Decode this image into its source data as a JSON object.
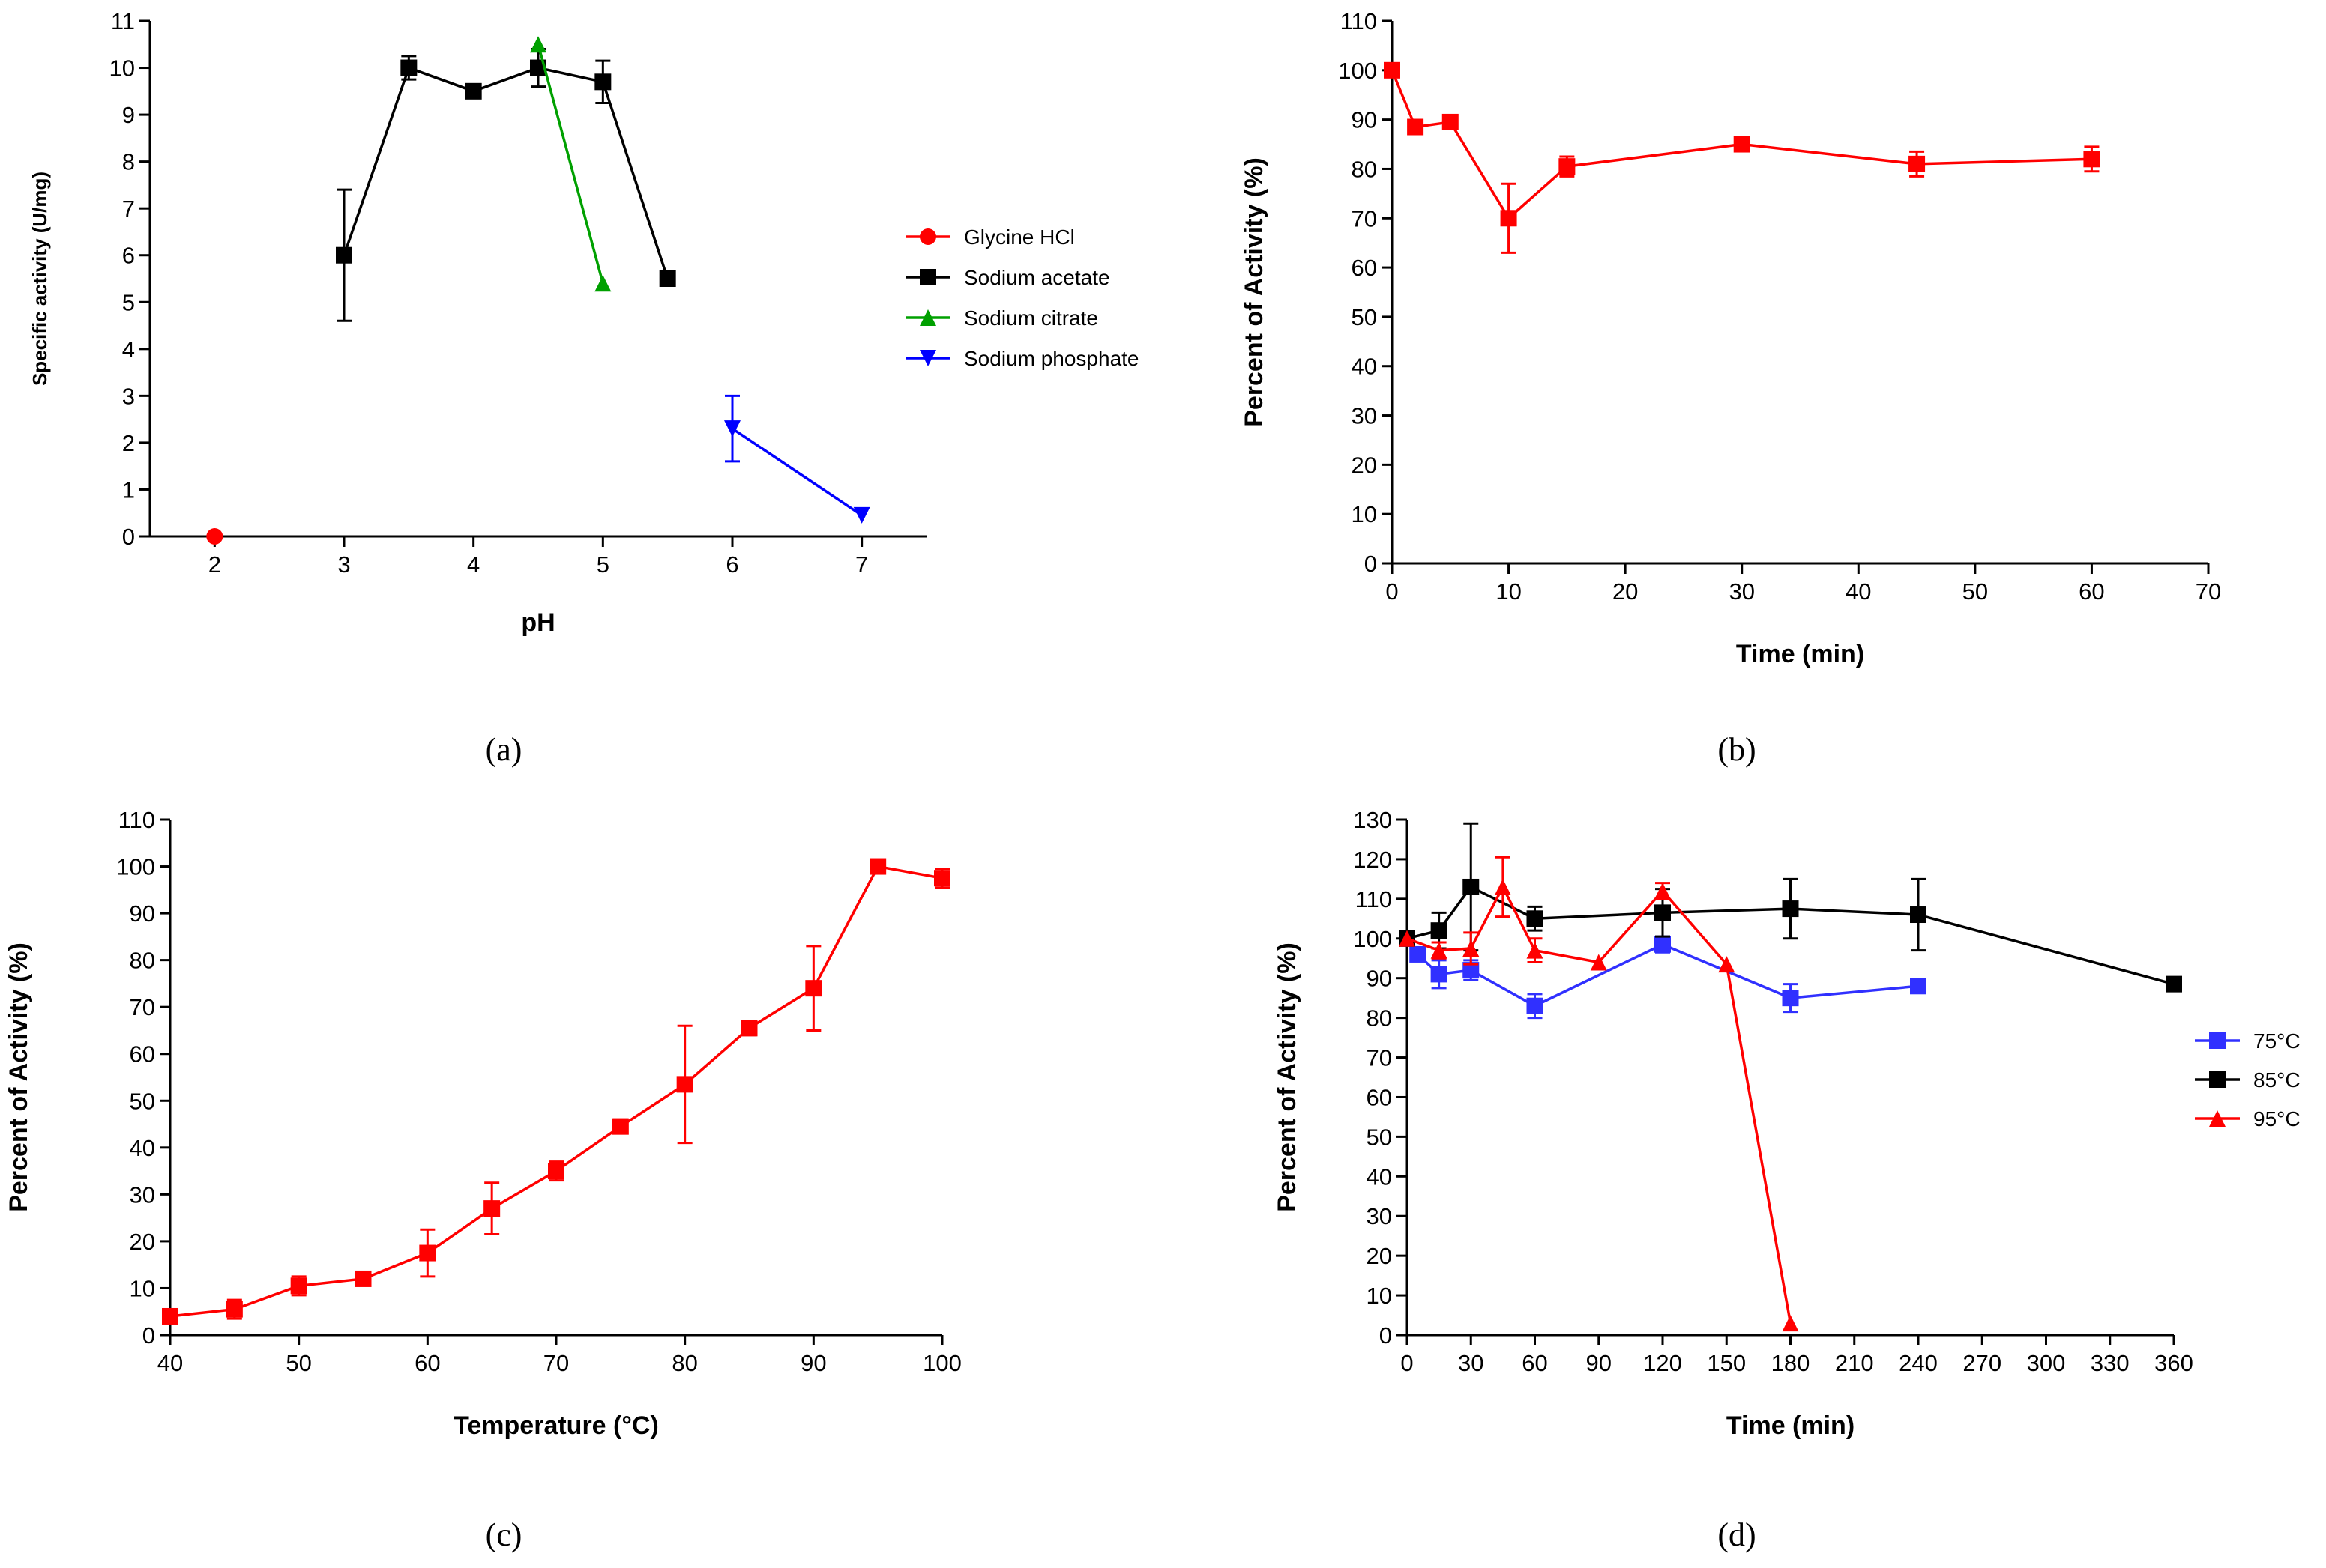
{
  "figure": {
    "panel_labels": [
      "(a)",
      "(b)",
      "(c)",
      "(d)"
    ]
  },
  "chart_data": [
    {
      "id": "a",
      "type": "line",
      "xlabel": "pH",
      "ylabel": "Specific activity (U/mg)",
      "xlim": [
        1.5,
        7.5
      ],
      "ylim": [
        0,
        11
      ],
      "xticks": [
        2,
        3,
        4,
        5,
        6,
        7
      ],
      "yticks": [
        0,
        1,
        2,
        3,
        4,
        5,
        6,
        7,
        8,
        9,
        10,
        11
      ],
      "legend_position": "right",
      "series": [
        {
          "name": "Glycine HCl",
          "color": "#ff0000",
          "marker": "circle",
          "x": [
            2
          ],
          "y": [
            0
          ],
          "err": [
            0
          ]
        },
        {
          "name": "Sodium acetate",
          "color": "#000000",
          "marker": "square",
          "x": [
            3,
            3.5,
            4,
            4.5,
            5,
            5.5
          ],
          "y": [
            6.0,
            10.0,
            9.5,
            10.0,
            9.7,
            5.5
          ],
          "err": [
            1.4,
            0.25,
            0.1,
            0.4,
            0.45,
            0.1
          ]
        },
        {
          "name": "Sodium citrate",
          "color": "#00a000",
          "marker": "triangle-up",
          "x": [
            4.5,
            5
          ],
          "y": [
            10.5,
            5.4
          ],
          "err": [
            0,
            0
          ]
        },
        {
          "name": "Sodium phosphate",
          "color": "#0000ff",
          "marker": "triangle-down",
          "x": [
            6,
            7
          ],
          "y": [
            2.3,
            0.45
          ],
          "err": [
            0.7,
            0
          ]
        }
      ]
    },
    {
      "id": "b",
      "type": "line",
      "xlabel": "Time (min)",
      "ylabel": "Percent of Activity (%)",
      "xlim": [
        0,
        70
      ],
      "ylim": [
        0,
        110
      ],
      "xticks": [
        0,
        10,
        20,
        30,
        40,
        50,
        60,
        70
      ],
      "yticks": [
        0,
        10,
        20,
        30,
        40,
        50,
        60,
        70,
        80,
        90,
        100,
        110
      ],
      "series": [
        {
          "name": "activity",
          "color": "#ff0000",
          "marker": "square",
          "x": [
            0,
            2,
            5,
            10,
            15,
            30,
            45,
            60
          ],
          "y": [
            100,
            88.5,
            89.5,
            70,
            80.5,
            85,
            81,
            82
          ],
          "err": [
            0,
            0,
            0,
            7,
            2,
            0,
            2.5,
            2.5
          ]
        }
      ]
    },
    {
      "id": "c",
      "type": "line",
      "xlabel": "Temperature (°C)",
      "ylabel": "Percent of Activity (%)",
      "xlim": [
        40,
        100
      ],
      "ylim": [
        0,
        110
      ],
      "xticks": [
        40,
        50,
        60,
        70,
        80,
        90,
        100
      ],
      "yticks": [
        0,
        10,
        20,
        30,
        40,
        50,
        60,
        70,
        80,
        90,
        100,
        110
      ],
      "series": [
        {
          "name": "activity",
          "color": "#ff0000",
          "marker": "square",
          "x": [
            40,
            45,
            50,
            55,
            60,
            65,
            70,
            75,
            80,
            85,
            90,
            95,
            100
          ],
          "y": [
            4,
            5.5,
            10.5,
            12,
            17.5,
            27,
            35,
            44.5,
            53.5,
            65.5,
            74,
            100,
            97.5
          ],
          "err": [
            0,
            2,
            2,
            0,
            5,
            5.5,
            2,
            1.5,
            12.5,
            1.5,
            9,
            0,
            2
          ]
        }
      ]
    },
    {
      "id": "d",
      "type": "line",
      "xlabel": "Time (min)",
      "ylabel": "Percent of Activity (%)",
      "xlim": [
        0,
        360
      ],
      "ylim": [
        0,
        130
      ],
      "xticks": [
        0,
        30,
        60,
        90,
        120,
        150,
        180,
        210,
        240,
        270,
        300,
        330,
        360
      ],
      "yticks": [
        0,
        10,
        20,
        30,
        40,
        50,
        60,
        70,
        80,
        90,
        100,
        110,
        120,
        130
      ],
      "legend_position": "right",
      "series": [
        {
          "name": "75°C",
          "color": "#3030ff",
          "marker": "square",
          "x": [
            0,
            5,
            15,
            30,
            60,
            120,
            180,
            240
          ],
          "y": [
            100,
            96,
            91,
            92,
            83,
            98.5,
            85,
            88
          ],
          "err": [
            0,
            0,
            3.5,
            2.5,
            3,
            2,
            3.5,
            0
          ]
        },
        {
          "name": "85°C",
          "color": "#000000",
          "marker": "square",
          "x": [
            0,
            15,
            30,
            60,
            120,
            180,
            240,
            360
          ],
          "y": [
            100,
            102,
            113,
            105,
            106.5,
            107.5,
            106,
            88.5
          ],
          "err": [
            0,
            4.5,
            16,
            3,
            6,
            7.5,
            9,
            0
          ]
        },
        {
          "name": "95°C",
          "color": "#ff0000",
          "marker": "triangle-up",
          "x": [
            0,
            15,
            30,
            45,
            60,
            90,
            120,
            150,
            180
          ],
          "y": [
            100,
            97,
            97.5,
            113,
            97,
            94,
            112,
            93.5,
            3
          ],
          "err": [
            0,
            2,
            4,
            7.5,
            3,
            0,
            2,
            0,
            0
          ]
        }
      ]
    }
  ]
}
